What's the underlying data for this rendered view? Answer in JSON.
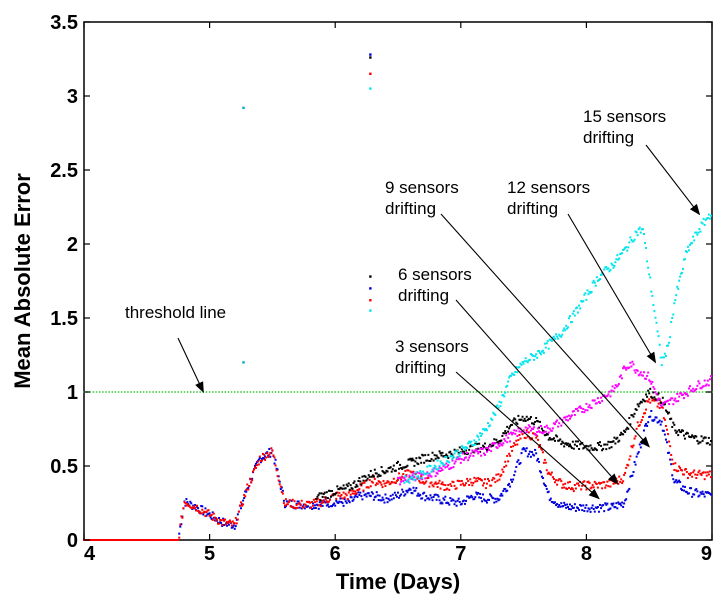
{
  "chart_data": {
    "type": "scatter",
    "title": "",
    "xlabel": "Time (Days)",
    "ylabel": "Mean Absolute Error",
    "xlim": [
      4,
      9
    ],
    "ylim": [
      0,
      3.5
    ],
    "x_ticks": [
      "4",
      "5",
      "6",
      "7",
      "8",
      "9"
    ],
    "y_ticks": [
      "0",
      "0.5",
      "1",
      "1.5",
      "2",
      "2.5",
      "3",
      "3.5"
    ],
    "grid": false,
    "threshold": {
      "label": "threshold line",
      "value": 1.0,
      "color": "#33cc33"
    },
    "colors": {
      "3 sensors drifting": "#0000dd",
      "6 sensors drifting": "#ff0000",
      "9 sensors drifting": "#000000",
      "12 sensors drifting": "#ff00ff",
      "15 sensors drifting": "#00e5ee"
    },
    "series": [
      {
        "values_x": [
          4.0,
          4.5,
          4.75,
          4.8,
          4.9,
          5.0,
          5.1,
          5.2,
          5.3,
          5.4,
          5.5,
          5.6,
          5.7,
          5.8,
          5.9,
          6.0,
          6.1,
          6.2,
          6.3,
          6.4,
          6.5,
          6.6,
          6.7,
          6.8,
          6.9,
          7.0,
          7.1,
          7.2,
          7.3,
          7.4,
          7.5,
          7.6,
          7.7,
          7.8,
          7.9,
          8.0,
          8.1,
          8.2,
          8.3,
          8.4,
          8.5,
          8.6,
          8.7,
          8.8,
          8.9,
          9.0
        ],
        "values_y": [
          0.0,
          0.0,
          0.0,
          0.26,
          0.22,
          0.17,
          0.12,
          0.1,
          0.35,
          0.55,
          0.6,
          0.25,
          0.24,
          0.24,
          0.24,
          0.26,
          0.25,
          0.3,
          0.3,
          0.28,
          0.3,
          0.35,
          0.3,
          0.28,
          0.26,
          0.25,
          0.3,
          0.28,
          0.28,
          0.4,
          0.6,
          0.58,
          0.3,
          0.23,
          0.22,
          0.22,
          0.22,
          0.22,
          0.25,
          0.55,
          0.85,
          0.8,
          0.4,
          0.33,
          0.31,
          0.3
        ]
      },
      {
        "values_x": [
          4.0,
          4.5,
          4.75,
          4.8,
          4.9,
          5.0,
          5.1,
          5.2,
          5.3,
          5.4,
          5.5,
          5.6,
          5.7,
          5.8,
          5.9,
          6.0,
          6.1,
          6.2,
          6.3,
          6.4,
          6.5,
          6.6,
          6.7,
          6.8,
          6.9,
          7.0,
          7.1,
          7.2,
          7.3,
          7.4,
          7.5,
          7.6,
          7.7,
          7.8,
          7.9,
          8.0,
          8.1,
          8.2,
          8.3,
          8.4,
          8.5,
          8.6,
          8.7,
          8.8,
          8.9,
          9.0
        ],
        "values_y": [
          0.0,
          0.0,
          0.0,
          0.26,
          0.22,
          0.17,
          0.12,
          0.1,
          0.35,
          0.55,
          0.6,
          0.25,
          0.24,
          0.24,
          0.26,
          0.3,
          0.3,
          0.35,
          0.4,
          0.38,
          0.42,
          0.45,
          0.4,
          0.38,
          0.36,
          0.38,
          0.4,
          0.38,
          0.42,
          0.6,
          0.72,
          0.7,
          0.45,
          0.38,
          0.36,
          0.37,
          0.37,
          0.38,
          0.42,
          0.75,
          0.95,
          0.9,
          0.5,
          0.45,
          0.44,
          0.44
        ]
      },
      {
        "values_x": [
          5.85,
          5.9,
          6.0,
          6.1,
          6.2,
          6.3,
          6.4,
          6.5,
          6.6,
          6.7,
          6.8,
          6.9,
          7.0,
          7.1,
          7.2,
          7.3,
          7.4,
          7.5,
          7.6,
          7.7,
          7.8,
          7.9,
          8.0,
          8.1,
          8.2,
          8.3,
          8.4,
          8.5,
          8.6,
          8.7,
          8.8,
          8.9,
          9.0
        ],
        "values_y": [
          0.28,
          0.3,
          0.33,
          0.35,
          0.4,
          0.45,
          0.47,
          0.5,
          0.52,
          0.55,
          0.57,
          0.58,
          0.6,
          0.62,
          0.63,
          0.67,
          0.78,
          0.83,
          0.8,
          0.7,
          0.66,
          0.64,
          0.63,
          0.63,
          0.65,
          0.72,
          0.9,
          1.0,
          0.95,
          0.75,
          0.7,
          0.68,
          0.67
        ]
      },
      {
        "values_x": [
          6.5,
          6.6,
          6.7,
          6.8,
          6.9,
          7.0,
          7.1,
          7.2,
          7.3,
          7.4,
          7.5,
          7.6,
          7.7,
          7.8,
          7.9,
          8.0,
          8.1,
          8.2,
          8.25,
          8.3,
          8.35,
          8.4,
          8.5,
          8.6,
          8.7,
          8.8,
          8.9,
          9.0
        ],
        "values_y": [
          0.4,
          0.42,
          0.44,
          0.46,
          0.5,
          0.55,
          0.58,
          0.6,
          0.65,
          0.7,
          0.75,
          0.74,
          0.75,
          0.8,
          0.85,
          0.9,
          0.95,
          1.0,
          1.05,
          1.15,
          1.2,
          1.15,
          1.1,
          0.9,
          0.95,
          1.0,
          1.05,
          1.08
        ]
      },
      {
        "values_x": [
          6.55,
          6.6,
          6.7,
          6.8,
          6.9,
          7.0,
          7.1,
          7.2,
          7.3,
          7.4,
          7.5,
          7.6,
          7.7,
          7.8,
          7.9,
          8.0,
          8.1,
          8.2,
          8.3,
          8.4,
          8.45,
          8.5,
          8.55,
          8.6,
          8.65,
          8.7,
          8.8,
          8.9,
          9.0
        ],
        "values_y": [
          0.4,
          0.42,
          0.45,
          0.5,
          0.55,
          0.6,
          0.66,
          0.75,
          0.9,
          1.1,
          1.2,
          1.25,
          1.32,
          1.4,
          1.52,
          1.65,
          1.78,
          1.85,
          1.95,
          2.08,
          2.1,
          1.8,
          1.5,
          1.2,
          1.3,
          1.6,
          1.95,
          2.1,
          2.22
        ]
      }
    ],
    "outliers": [
      {
        "x": 5.27,
        "y": 2.92,
        "color": "#00aacc"
      },
      {
        "x": 5.27,
        "y": 1.2,
        "color": "#00aacc"
      },
      {
        "x": 6.28,
        "y": 3.28,
        "color": "#0000dd"
      },
      {
        "x": 6.28,
        "y": 3.26,
        "color": "#000000"
      },
      {
        "x": 6.28,
        "y": 3.15,
        "color": "#ff0000"
      },
      {
        "x": 6.28,
        "y": 3.05,
        "color": "#00e5ee"
      },
      {
        "x": 6.28,
        "y": 1.78,
        "color": "#000000"
      },
      {
        "x": 6.28,
        "y": 1.7,
        "color": "#0000dd"
      },
      {
        "x": 6.28,
        "y": 1.62,
        "color": "#ff0000"
      },
      {
        "x": 6.28,
        "y": 1.55,
        "color": "#00e5ee"
      }
    ],
    "annotations": [
      {
        "lines": [
          "threshold line"
        ],
        "target": [
          4.95,
          1.0
        ]
      },
      {
        "lines": [
          "3 sensors",
          "drifting"
        ],
        "target": [
          8.1,
          0.28
        ]
      },
      {
        "lines": [
          "6 sensors",
          "drifting"
        ],
        "target": [
          8.25,
          0.38
        ]
      },
      {
        "lines": [
          "9 sensors",
          "drifting"
        ],
        "target": [
          8.5,
          0.63
        ]
      },
      {
        "lines": [
          "12 sensors",
          "drifting"
        ],
        "target": [
          8.55,
          1.2
        ]
      },
      {
        "lines": [
          "15 sensors",
          "drifting"
        ],
        "target": [
          8.9,
          2.2
        ]
      }
    ]
  }
}
